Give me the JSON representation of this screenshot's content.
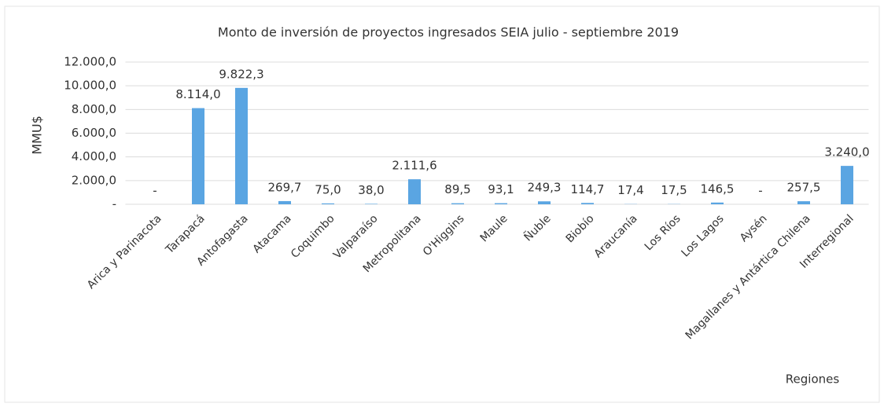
{
  "chart_data": {
    "type": "bar",
    "title": "Monto de inversión de proyectos ingresados SEIA julio - septiembre 2019",
    "y_label": "MMU$",
    "x_label": "Regiones",
    "categories": [
      "Arica y Parinacota",
      "Tarapacá",
      "Antofagasta",
      "Atacama",
      "Coquimbo",
      "Valparaíso",
      "Metropolitana",
      "O'Higgins",
      "Maule",
      "Ñuble",
      "Biobío",
      "Araucanía",
      "Los Ríos",
      "Los Lagos",
      "Aysén",
      "Magallanes y Antártica Chilena",
      "Interregional"
    ],
    "values": [
      0,
      8114.0,
      9822.3,
      269.7,
      75.0,
      38.0,
      2111.6,
      89.5,
      93.1,
      249.3,
      114.7,
      17.4,
      17.5,
      146.5,
      0,
      257.5,
      3240.0
    ],
    "value_labels": [
      "-",
      "8.114,0",
      "9.822,3",
      "269,7",
      "75,0",
      "38,0",
      "2.111,6",
      "89,5",
      "93,1",
      "249,3",
      "114,7",
      "17,4",
      "17,5",
      "146,5",
      "-",
      "257,5",
      "3.240,0"
    ],
    "color": "#5aa5e2",
    "ylim": [
      0,
      12000
    ],
    "yticks": [
      {
        "value": 0,
        "label": "-"
      },
      {
        "value": 2000,
        "label": "2.000,0"
      },
      {
        "value": 4000,
        "label": "4.000,0"
      },
      {
        "value": 6000,
        "label": "6.000,0"
      },
      {
        "value": 8000,
        "label": "8.000,0"
      },
      {
        "value": 10000,
        "label": "10.000,0"
      },
      {
        "value": 12000,
        "label": "12.000,0"
      }
    ],
    "grid": true
  }
}
